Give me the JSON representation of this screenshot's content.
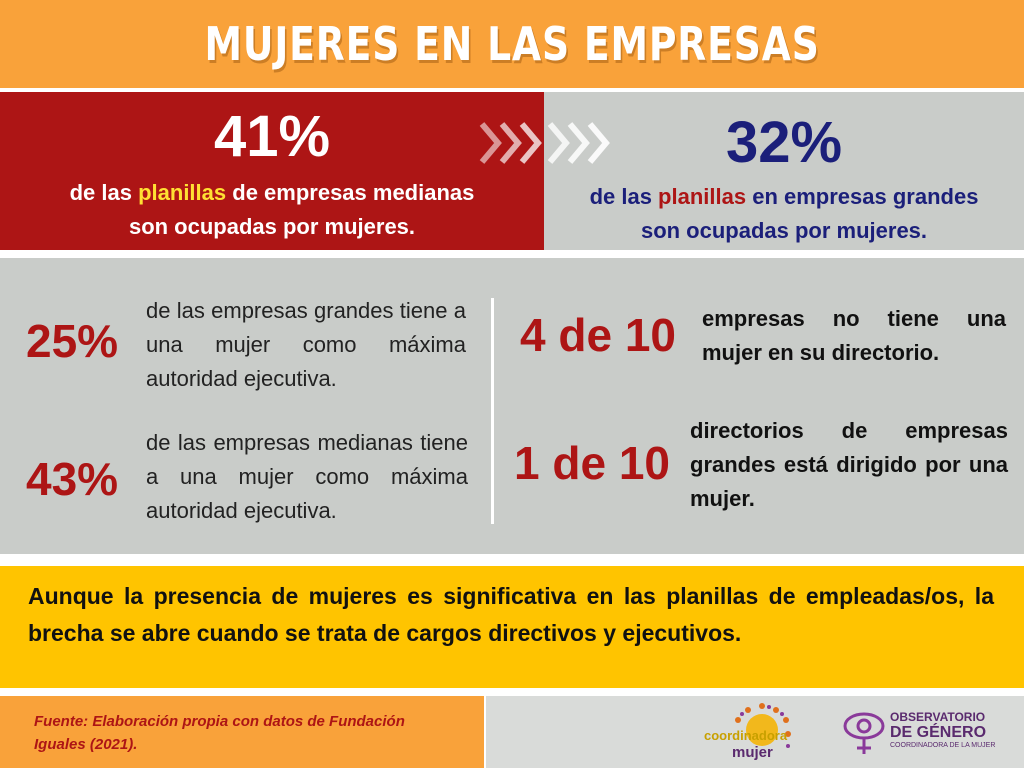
{
  "header": {
    "title": "MUJERES EN LAS EMPRESAS"
  },
  "top_left": {
    "percent": "41%",
    "line1_pre": "de las ",
    "line1_highlight": "planillas",
    "line1_post": " de empresas medianas",
    "line2": "son ocupadas por mujeres."
  },
  "top_right": {
    "percent": "32%",
    "line1_pre": "de las ",
    "line1_highlight": "planillas",
    "line1_post": " en empresas grandes",
    "line2": "son ocupadas por mujeres."
  },
  "stats": {
    "s1": {
      "value": "25%",
      "text": "de las empresas grandes tiene a una mujer como máxima autoridad ejecutiva."
    },
    "s2": {
      "value": "43%",
      "text": "de las empresas medianas tiene a una mujer como máxima autoridad ejecutiva."
    },
    "s3": {
      "value": "4 de 10",
      "text": "empresas no tiene una mujer en su directorio."
    },
    "s4": {
      "value": "1 de 10",
      "text": "directorios de empresas grandes está dirigido por una mujer."
    }
  },
  "conclusion": {
    "text": "Aunque la presencia de mujeres es significativa en las planillas de empleadas/os, la brecha se abre cuando se trata de cargos directivos y ejecutivos."
  },
  "footer": {
    "source": "Fuente: Elaboración propia con datos de Fundación Iguales (2021).",
    "logo1_line1": "coordinadora",
    "logo1_line2": "mujer",
    "logo2_line1": "OBSERVATORIO",
    "logo2_line2": "DE GÉNERO",
    "logo2_line3": "COORDINADORA DE LA MUJER"
  },
  "colors": {
    "orange": "#f9a23a",
    "red": "#ad1515",
    "navy": "#1b1f7a",
    "gray": "#c9ccc9",
    "yellow": "#ffc400"
  }
}
